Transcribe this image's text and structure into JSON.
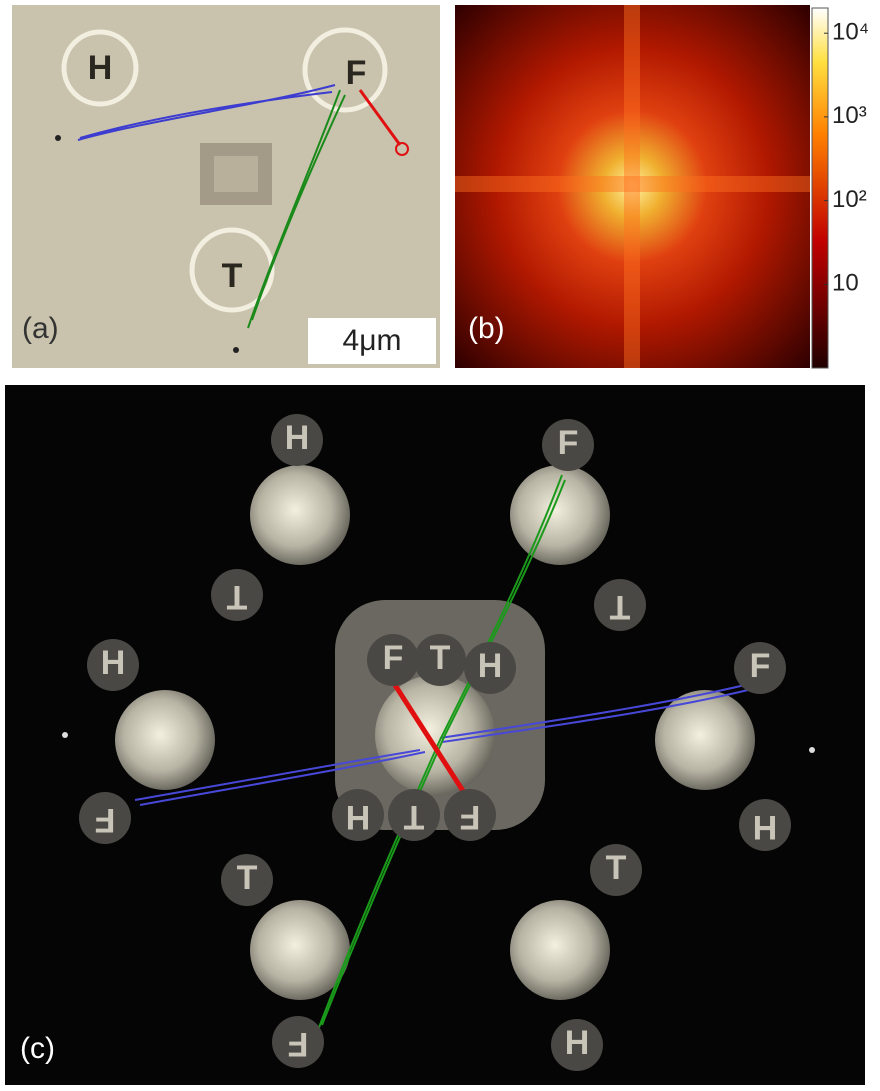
{
  "panels": [
    {
      "label": "(a)",
      "scale_bar": "4μm",
      "letters": [
        "H",
        "F",
        "T"
      ]
    },
    {
      "label": "(b)",
      "colorbar": {
        "scale": "log",
        "lim": [
          1,
          20000
        ],
        "ticks": [
          {
            "value": 10000,
            "label": "10⁴"
          },
          {
            "value": 1000,
            "label": "10³"
          },
          {
            "value": 100,
            "label": "10²"
          },
          10
        ]
      }
    },
    {
      "label": "(c)",
      "letters": [
        "H",
        "T",
        "F",
        "T",
        "H",
        "F",
        "F",
        "H",
        "T",
        "F",
        "T",
        "H",
        "F",
        "T",
        "H",
        "H",
        "T",
        "F"
      ]
    }
  ]
}
